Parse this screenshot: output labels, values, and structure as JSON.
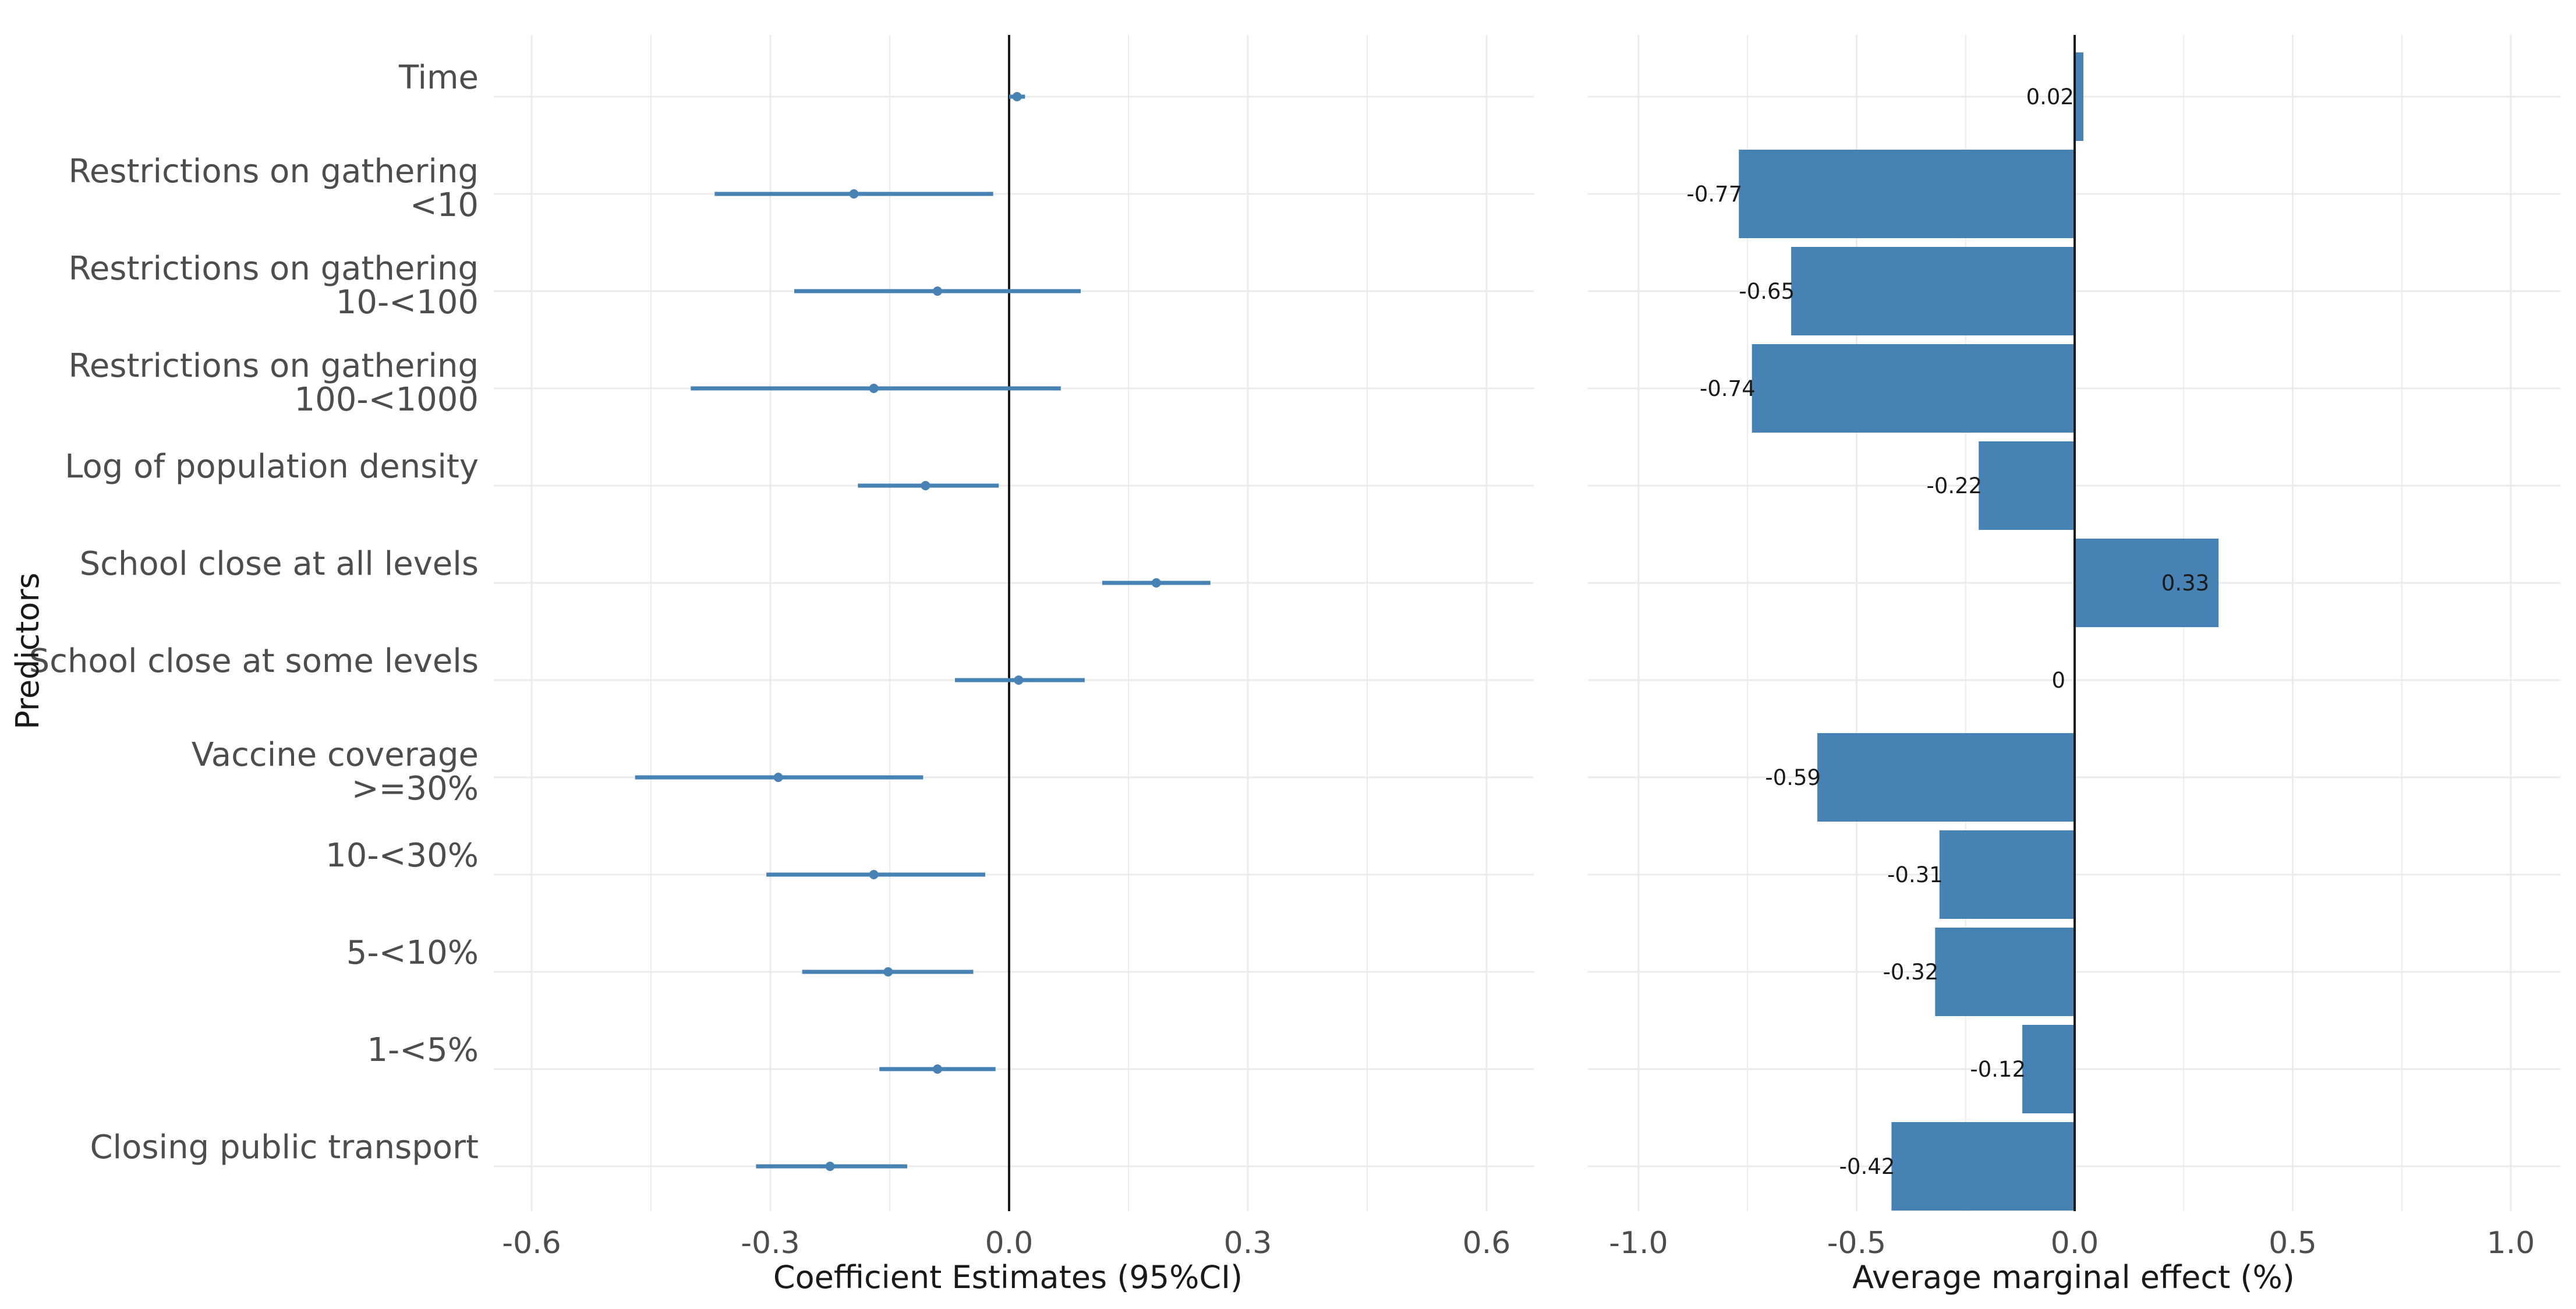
{
  "chart_data": [
    {
      "type": "forest",
      "xlabel": "Coefficient Estimates (95%CI)",
      "ylabel": "Predictors",
      "xlim": [
        -0.6,
        0.6
      ],
      "xticks": [
        "-0.6",
        "-0.3",
        "0.0",
        "0.3",
        "0.6"
      ],
      "xtick_values": [
        -0.6,
        -0.3,
        0.0,
        0.3,
        0.6
      ],
      "reference_line": 0,
      "color": "#4682B4",
      "rows": [
        {
          "label": [
            "Time"
          ],
          "estimate": 0.01,
          "lower": 0.0,
          "upper": 0.02
        },
        {
          "label": [
            "Restrictions on gathering",
            "<10"
          ],
          "estimate": -0.195,
          "lower": -0.37,
          "upper": -0.02
        },
        {
          "label": [
            "Restrictions on gathering",
            "10-<100"
          ],
          "estimate": -0.09,
          "lower": -0.27,
          "upper": 0.09
        },
        {
          "label": [
            "Restrictions on gathering",
            "100-<1000"
          ],
          "estimate": -0.17,
          "lower": -0.4,
          "upper": 0.065
        },
        {
          "label": [
            "Log of population density"
          ],
          "estimate": -0.105,
          "lower": -0.19,
          "upper": -0.013
        },
        {
          "label": [
            "School close at all levels"
          ],
          "estimate": 0.185,
          "lower": 0.117,
          "upper": 0.253
        },
        {
          "label": [
            "School close at some levels"
          ],
          "estimate": 0.012,
          "lower": -0.068,
          "upper": 0.095
        },
        {
          "label": [
            "Vaccine coverage",
            ">=30%"
          ],
          "estimate": -0.29,
          "lower": -0.47,
          "upper": -0.108
        },
        {
          "label": [
            "10-<30%"
          ],
          "estimate": -0.17,
          "lower": -0.305,
          "upper": -0.03
        },
        {
          "label": [
            "5-<10%"
          ],
          "estimate": -0.152,
          "lower": -0.26,
          "upper": -0.045
        },
        {
          "label": [
            "1-<5%"
          ],
          "estimate": -0.09,
          "lower": -0.163,
          "upper": -0.017
        },
        {
          "label": [
            "Closing public transport"
          ],
          "estimate": -0.225,
          "lower": -0.318,
          "upper": -0.128
        }
      ]
    },
    {
      "type": "bar",
      "orientation": "horizontal",
      "xlabel": "Average marginal effect (%)",
      "xlim": [
        -1.0,
        1.0
      ],
      "xticks": [
        "-1.0",
        "-0.5",
        "0.0",
        "0.5",
        "1.0"
      ],
      "xtick_values": [
        -1.0,
        -0.5,
        0.0,
        0.5,
        1.0
      ],
      "color": "#4682B4",
      "values": [
        0.02,
        -0.77,
        -0.65,
        -0.74,
        -0.22,
        0.33,
        0,
        -0.59,
        -0.31,
        -0.32,
        -0.12,
        -0.42
      ],
      "value_labels": [
        "0.02",
        "-0.77",
        "-0.65",
        "-0.74",
        "-0.22",
        "0.33",
        "0",
        "-0.59",
        "-0.31",
        "-0.32",
        "-0.12",
        "-0.42"
      ]
    }
  ]
}
